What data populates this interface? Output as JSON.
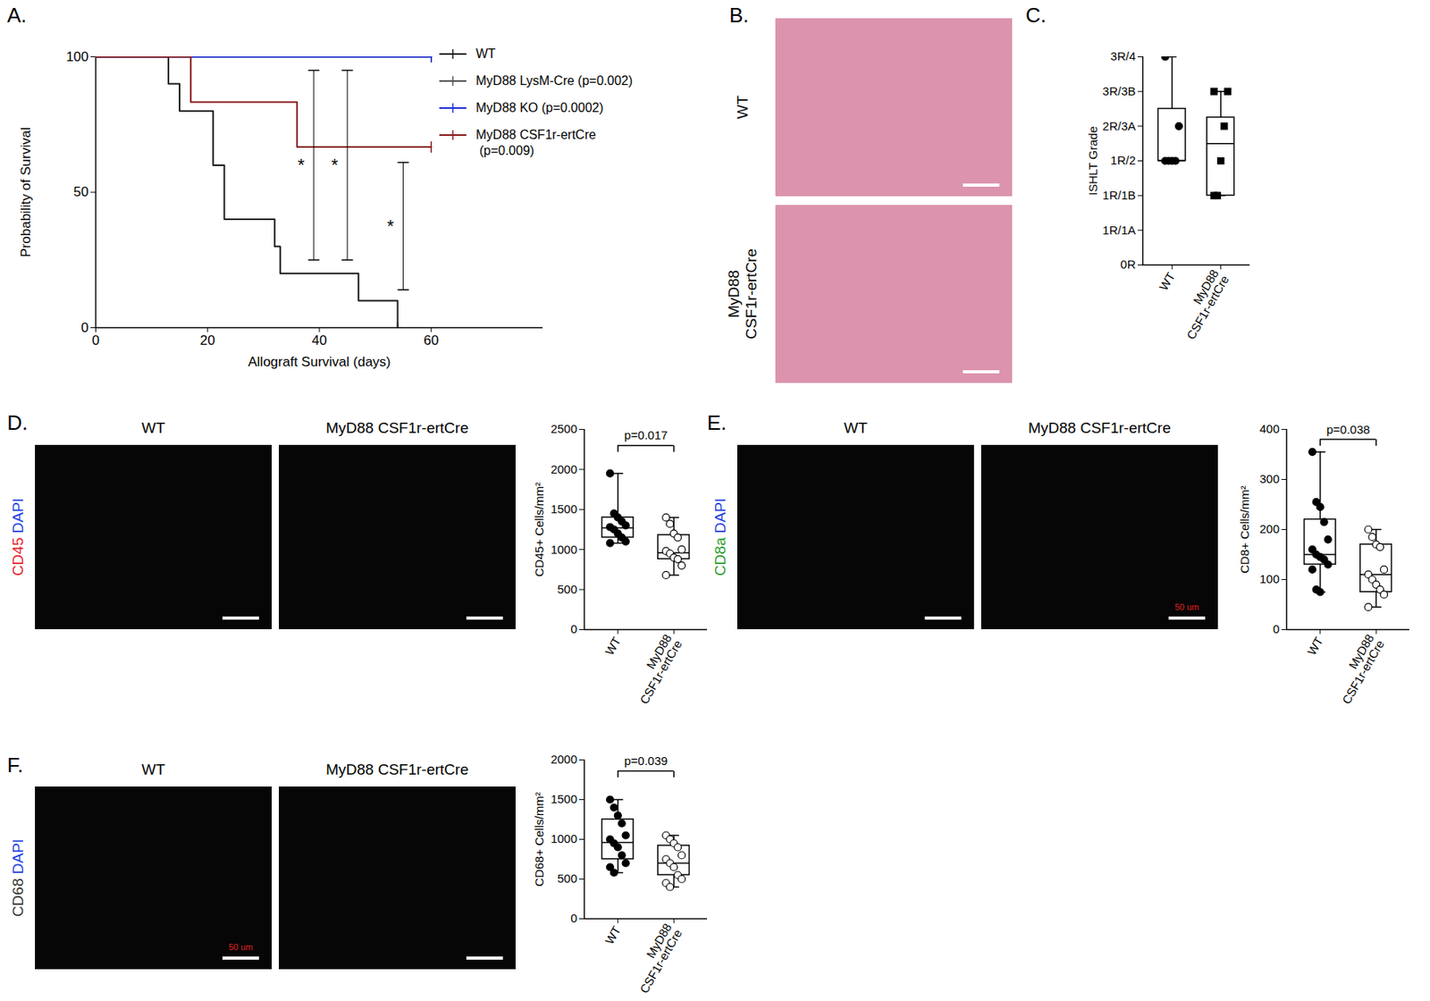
{
  "chart_data": [
    {
      "type": "line",
      "title": "A.",
      "x_label": "Allograft Survival (days)",
      "y_label": "Probability of Survival",
      "xlim": [
        0,
        80
      ],
      "xticks": [
        0,
        20,
        40,
        60
      ],
      "ylim": [
        0,
        100
      ],
      "yticks": [
        0,
        50,
        100
      ],
      "line_style": "step",
      "marker": "tick",
      "legend": "top-right",
      "series": [
        {
          "name": "WT",
          "color": "#1a1a1a",
          "x": [
            0,
            13,
            15,
            21,
            23,
            32,
            33,
            47,
            54
          ],
          "values": [
            100,
            90,
            80,
            60,
            40,
            30,
            20,
            10,
            0
          ]
        },
        {
          "name": "MyD88 LysM-Cre (p=0.002)",
          "color": "#555555",
          "x": [
            0,
            60
          ],
          "values": [
            100,
            100
          ]
        },
        {
          "name": "MyD88 KO (p=0.0002)",
          "color": "#2030d8",
          "x": [
            0,
            60
          ],
          "values": [
            100,
            100
          ]
        },
        {
          "name": "MyD88 CSF1r-ertCre\n (p=0.009)",
          "color": "#8b1c1c",
          "x": [
            0,
            17,
            36,
            60
          ],
          "values": [
            100,
            83.3,
            66.7,
            66.7
          ]
        }
      ],
      "annotations": [
        {
          "text": "*",
          "x": 39,
          "y1": 25,
          "y2": 95
        },
        {
          "text": "*",
          "x": 45,
          "y1": 25,
          "y2": 95
        },
        {
          "text": "*",
          "x": 55,
          "y1": 14,
          "y2": 61
        }
      ]
    },
    {
      "type": "image",
      "title": "B.",
      "rows": [
        "WT",
        "MyD88\nCSF1r-ertCre"
      ]
    },
    {
      "type": "box",
      "title": "C.",
      "y_label": "ISHLT Grade",
      "categories": [
        "WT",
        "MyD88\nCSF1r-ertCre"
      ],
      "ylim": [
        0,
        6
      ],
      "yticks": [
        {
          "value": 0,
          "label": "0R"
        },
        {
          "value": 1,
          "label": "1R/1A"
        },
        {
          "value": 2,
          "label": "1R/1B"
        },
        {
          "value": 3,
          "label": "1R/2"
        },
        {
          "value": 4,
          "label": "2R/3A"
        },
        {
          "value": 5,
          "label": "3R/3B"
        },
        {
          "value": 6,
          "label": "3R/4"
        }
      ],
      "groups": [
        {
          "marker": "circle-filled",
          "points": [
            3,
            3,
            3,
            3,
            4,
            6
          ],
          "min": 3,
          "q1": 3,
          "median": 3,
          "q3": 4.5,
          "max": 6
        },
        {
          "marker": "square-filled",
          "points": [
            2,
            2,
            3,
            4,
            5,
            5
          ],
          "min": 2,
          "q1": 2,
          "median": 3.5,
          "q3": 4.25,
          "max": 5
        }
      ]
    },
    {
      "type": "image",
      "title": "D.",
      "columns": [
        "WT",
        "MyD88 CSF1r-ertCre"
      ],
      "stain_labels": [
        {
          "text": "CD45",
          "color": "#e8202a"
        },
        {
          "text": "DAPI",
          "color": "#1f3fe0"
        }
      ]
    },
    {
      "type": "box",
      "y_label": "CD45+ Cells/mm²",
      "categories": [
        "WT",
        "MyD88\nCSF1r-ertCre"
      ],
      "ylim": [
        0,
        2500
      ],
      "yticks": [
        0,
        500,
        1000,
        1500,
        2000,
        2500
      ],
      "groups": [
        {
          "marker": "circle-filled",
          "points": [
            1950,
            1450,
            1400,
            1350,
            1300,
            1280,
            1250,
            1200,
            1150,
            1100,
            1080
          ],
          "min": 1080,
          "q1": 1150,
          "median": 1270,
          "q3": 1400,
          "max": 1950
        },
        {
          "marker": "circle-open",
          "points": [
            1400,
            1320,
            1200,
            1150,
            1000,
            980,
            950,
            900,
            880,
            800,
            680
          ],
          "min": 680,
          "q1": 880,
          "median": 960,
          "q3": 1180,
          "max": 1400
        }
      ],
      "annotations": [
        {
          "text": "p=0.017",
          "y": 2300
        }
      ]
    },
    {
      "type": "image",
      "title": "E.",
      "columns": [
        "WT",
        "MyD88 CSF1r-ertCre"
      ],
      "stain_labels": [
        {
          "text": "CD8a",
          "color": "#2a9d2a"
        },
        {
          "text": "DAPI",
          "color": "#1f3fe0"
        }
      ],
      "scale_labels": [
        null,
        "50 um"
      ]
    },
    {
      "type": "box",
      "y_label": "CD8+ Cells/mm²",
      "categories": [
        "WT",
        "MyD88\nCSF1r-ertCre"
      ],
      "ylim": [
        0,
        400
      ],
      "yticks": [
        0,
        100,
        200,
        300,
        400
      ],
      "groups": [
        {
          "marker": "circle-filled",
          "points": [
            355,
            255,
            245,
            215,
            180,
            160,
            150,
            145,
            140,
            130,
            120,
            80,
            75
          ],
          "min": 75,
          "q1": 130,
          "median": 150,
          "q3": 220,
          "max": 355
        },
        {
          "marker": "circle-open",
          "points": [
            200,
            185,
            170,
            165,
            120,
            110,
            100,
            90,
            80,
            70,
            45
          ],
          "min": 45,
          "q1": 75,
          "median": 110,
          "q3": 170,
          "max": 200
        }
      ],
      "annotations": [
        {
          "text": "p=0.038",
          "y": 380
        }
      ]
    },
    {
      "type": "image",
      "title": "F.",
      "columns": [
        "WT",
        "MyD88 CSF1r-ertCre"
      ],
      "stain_labels": [
        {
          "text": "CD68",
          "color": "#333333"
        },
        {
          "text": "DAPI",
          "color": "#1f3fe0"
        }
      ],
      "scale_labels": [
        "50 um",
        null
      ]
    },
    {
      "type": "box",
      "y_label": "CD68+ Cells/mm²",
      "categories": [
        "WT",
        "MyD88\nCSF1r-ertCre"
      ],
      "ylim": [
        0,
        2000
      ],
      "yticks": [
        0,
        500,
        1000,
        1500,
        2000
      ],
      "groups": [
        {
          "marker": "circle-filled",
          "points": [
            1500,
            1400,
            1300,
            1200,
            1050,
            1000,
            950,
            900,
            800,
            700,
            650,
            580
          ],
          "min": 580,
          "q1": 750,
          "median": 960,
          "q3": 1250,
          "max": 1500
        },
        {
          "marker": "circle-open",
          "points": [
            1050,
            1000,
            950,
            900,
            800,
            750,
            700,
            650,
            550,
            500,
            450,
            400
          ],
          "min": 400,
          "q1": 550,
          "median": 700,
          "q3": 920,
          "max": 1050
        }
      ],
      "annotations": [
        {
          "text": "p=0.039",
          "y": 1860
        }
      ]
    }
  ]
}
